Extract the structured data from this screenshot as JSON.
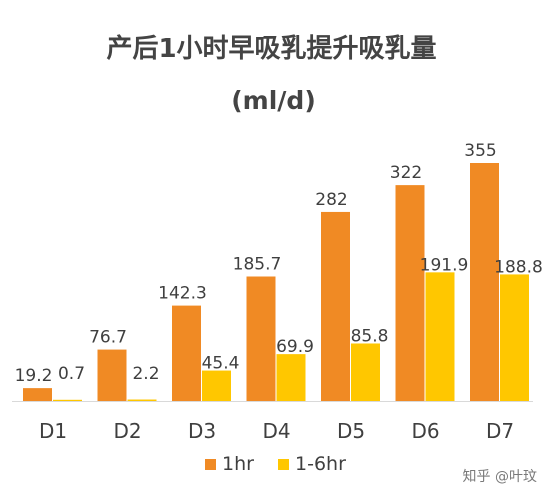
{
  "chart_data": {
    "type": "bar",
    "title": "产后1小时早吸乳提升吸乳量",
    "subtitle": "(ml/d)",
    "categories": [
      "D1",
      "D2",
      "D3",
      "D4",
      "D5",
      "D6",
      "D7"
    ],
    "series": [
      {
        "name": "1hr",
        "color": "#F08A24",
        "values": [
          19.2,
          76.7,
          142.3,
          185.7,
          282,
          322,
          355
        ]
      },
      {
        "name": "1-6hr",
        "color": "#FFC700",
        "values": [
          0.7,
          2.2,
          45.4,
          69.9,
          85.8,
          191.9,
          188.8
        ]
      }
    ],
    "value_labels": [
      [
        "19.2",
        "76.7",
        "142.3",
        "185.7",
        "282",
        "322",
        "355"
      ],
      [
        "0.7",
        "2.2",
        "45.4",
        "69.9",
        "85.8",
        "191.9",
        "188.8"
      ]
    ],
    "ylim": [
      0,
      355
    ],
    "grid": false,
    "legend_position": "bottom"
  },
  "watermark": "知乎 @叶玟"
}
